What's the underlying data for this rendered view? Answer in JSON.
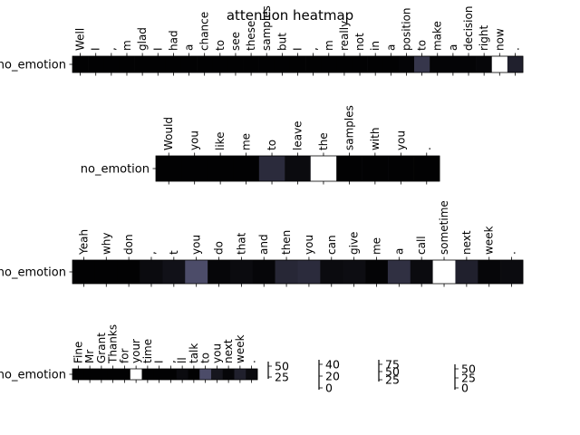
{
  "chart_data": {
    "type": "heatmap",
    "title": "attention heatmap",
    "colormap": "bone",
    "rows": [
      {
        "ylabel": "no_emotion",
        "tokens": [
          "Well",
          "I",
          ",",
          "m",
          "glad",
          "I",
          "had",
          "a",
          "chance",
          "to",
          "see",
          "these",
          "samples",
          "but",
          "I",
          ",",
          "m",
          "really",
          "not",
          "in",
          "a",
          "position",
          "to",
          "make",
          "a",
          "decision",
          "right",
          "now",
          "."
        ],
        "values": [
          0.01,
          0.01,
          0.01,
          0.01,
          0.01,
          0.01,
          0.01,
          0.01,
          0.01,
          0.01,
          0.01,
          0.01,
          0.01,
          0.01,
          0.01,
          0.01,
          0.01,
          0.01,
          0.01,
          0.01,
          0.01,
          0.02,
          0.25,
          0.02,
          0.02,
          0.02,
          0.03,
          1.0,
          0.15
        ]
      },
      {
        "ylabel": "no_emotion",
        "tokens": [
          "Would",
          "you",
          "like",
          "me",
          "to",
          "leave",
          "the",
          "samples",
          "with",
          "you",
          "."
        ],
        "values": [
          0.01,
          0.01,
          0.01,
          0.01,
          0.2,
          0.05,
          1.0,
          0.01,
          0.01,
          0.01,
          0.01
        ]
      },
      {
        "ylabel": "no_emotion",
        "tokens": [
          "Yeah",
          "why",
          "don",
          ",",
          "t",
          "you",
          "do",
          "that",
          "and",
          "then",
          "you",
          "can",
          "give",
          "me",
          "a",
          "call",
          "sometime",
          "next",
          "week",
          "."
        ],
        "values": [
          0.01,
          0.01,
          0.01,
          0.05,
          0.08,
          0.35,
          0.03,
          0.05,
          0.03,
          0.18,
          0.2,
          0.05,
          0.06,
          0.02,
          0.22,
          0.05,
          1.0,
          0.15,
          0.03,
          0.05
        ]
      },
      {
        "ylabel": "no_emotion",
        "tokens": [
          "Fine",
          "Mr",
          "Grant",
          "Thanks",
          "for",
          "your",
          "time",
          "I",
          ",",
          "ll",
          "talk",
          "to",
          "you",
          "next",
          "week",
          "."
        ],
        "values": [
          0.01,
          0.01,
          0.01,
          0.01,
          0.01,
          1.0,
          0.01,
          0.01,
          0.01,
          0.05,
          0.01,
          0.35,
          0.1,
          0.03,
          0.15,
          0.05
        ]
      }
    ],
    "colorbars": [
      {
        "ticks": [
          "50",
          "25"
        ]
      },
      {
        "ticks": [
          "40",
          "20",
          "0"
        ]
      },
      {
        "ticks": [
          "75",
          "50",
          "25"
        ]
      },
      {
        "ticks": [
          "50",
          "25",
          "0"
        ]
      }
    ]
  }
}
